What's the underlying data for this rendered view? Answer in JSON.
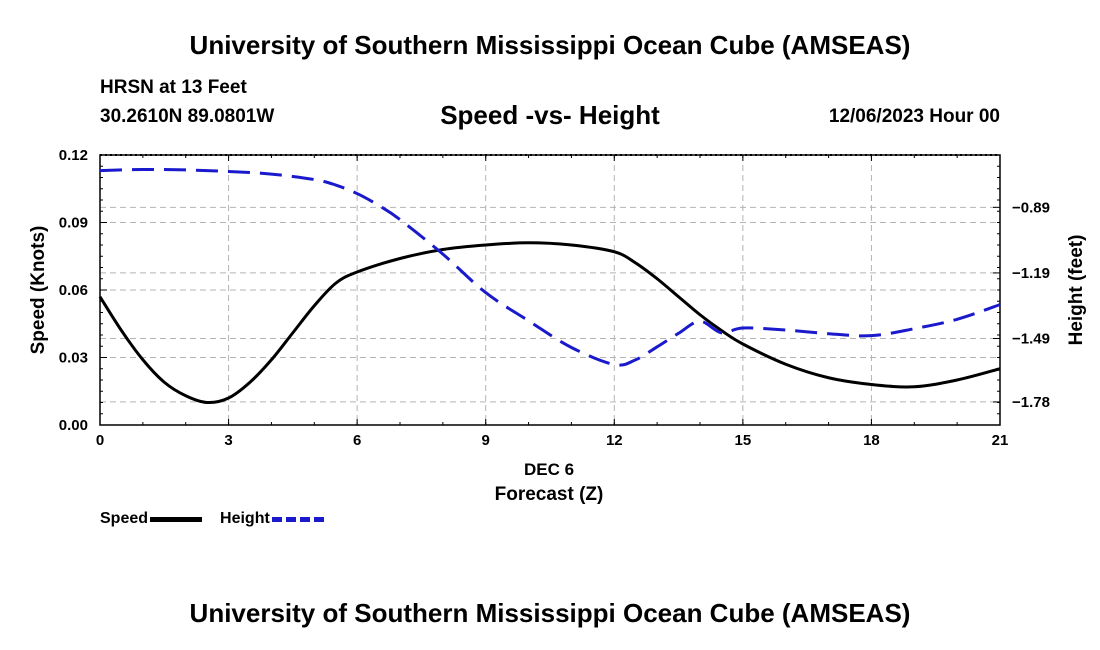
{
  "header": {
    "title": "University of Southern Mississippi Ocean Cube (AMSEAS)",
    "station": "HRSN at 13 Feet",
    "coordinates": "30.2610N  89.0801W",
    "chart_title": "Speed -vs- Height",
    "datetime": "12/06/2023 Hour 00"
  },
  "footer": {
    "title": "University of Southern Mississippi Ocean Cube (AMSEAS)"
  },
  "legend": {
    "speed_label": "Speed",
    "height_label": "Height"
  },
  "colors": {
    "speed": "#000000",
    "height": "#1a1acc",
    "grid": "#b4b4b4"
  },
  "chart_data": {
    "type": "line",
    "title": "Speed -vs- Height",
    "xlabel": "Forecast (Z)",
    "xlabel_date": "DEC 6",
    "ylabel": "Speed (Knots)",
    "y2label": "Height (feet)",
    "xlim": [
      0,
      21
    ],
    "ylim": [
      0,
      0.12
    ],
    "y2lim": [
      -1.8855,
      -0.6507
    ],
    "grid": true,
    "x_ticks": [
      "0",
      "3",
      "6",
      "9",
      "12",
      "15",
      "18",
      "21"
    ],
    "y_ticks": [
      "0.00",
      "0.03",
      "0.06",
      "0.09",
      "0.12"
    ],
    "y2_ticks": [
      "-0.89",
      "-1.19",
      "-1.49",
      "-1.78"
    ],
    "series": [
      {
        "name": "Speed",
        "axis": "left",
        "style": "solid",
        "x": [
          0,
          0.5,
          1,
          1.5,
          2,
          2.5,
          3,
          3.5,
          4,
          4.5,
          5,
          5.5,
          6,
          7,
          8,
          9,
          10,
          11,
          12,
          12.5,
          13,
          13.5,
          14,
          14.5,
          15,
          16,
          17,
          18,
          19,
          20,
          21
        ],
        "values": [
          0.057,
          0.042,
          0.029,
          0.019,
          0.013,
          0.01,
          0.012,
          0.019,
          0.029,
          0.041,
          0.053,
          0.063,
          0.068,
          0.074,
          0.078,
          0.08,
          0.081,
          0.08,
          0.077,
          0.072,
          0.065,
          0.057,
          0.049,
          0.042,
          0.036,
          0.027,
          0.021,
          0.018,
          0.017,
          0.02,
          0.025
        ]
      },
      {
        "name": "Height",
        "axis": "right",
        "style": "dashed",
        "x": [
          0,
          1,
          2,
          3,
          4,
          5,
          5.5,
          6,
          6.5,
          7,
          8,
          9,
          10,
          11,
          12,
          12.5,
          13,
          13.5,
          14,
          14.5,
          15,
          16,
          17,
          18,
          19,
          20,
          21
        ],
        "values": [
          -0.722,
          -0.717,
          -0.719,
          -0.726,
          -0.738,
          -0.763,
          -0.788,
          -0.827,
          -0.881,
          -0.946,
          -1.104,
          -1.28,
          -1.409,
          -1.531,
          -1.609,
          -1.587,
          -1.528,
          -1.466,
          -1.411,
          -1.464,
          -1.442,
          -1.451,
          -1.468,
          -1.477,
          -1.445,
          -1.402,
          -1.335
        ]
      }
    ]
  }
}
